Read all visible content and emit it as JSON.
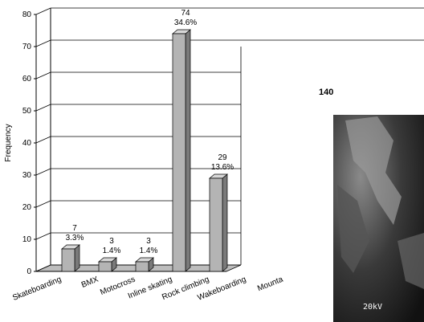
{
  "chart_data": {
    "type": "bar3d",
    "y_label": "Frequency",
    "categories": [
      "Skateboarding",
      "BMX",
      "Motocross",
      "Inline skating",
      "Rock climbing",
      "Wakeboarding",
      "Mounta"
    ],
    "values": [
      7,
      3,
      3,
      74,
      29,
      null,
      null
    ],
    "percents": {
      "values": [
        3.3,
        1.4,
        1.4,
        34.6,
        13.6,
        null,
        null
      ],
      "value_labels": [
        "3.3%",
        "1.4%",
        "1.4%",
        "34.6%",
        "13.6%",
        null,
        null
      ]
    },
    "color": "#b4b4b4",
    "ylim": [
      0,
      80
    ],
    "yticks": [
      0,
      10,
      20,
      30,
      40,
      50,
      60,
      70,
      80
    ],
    "grid": true
  },
  "figure_label": "140",
  "image_caption": "20kV"
}
